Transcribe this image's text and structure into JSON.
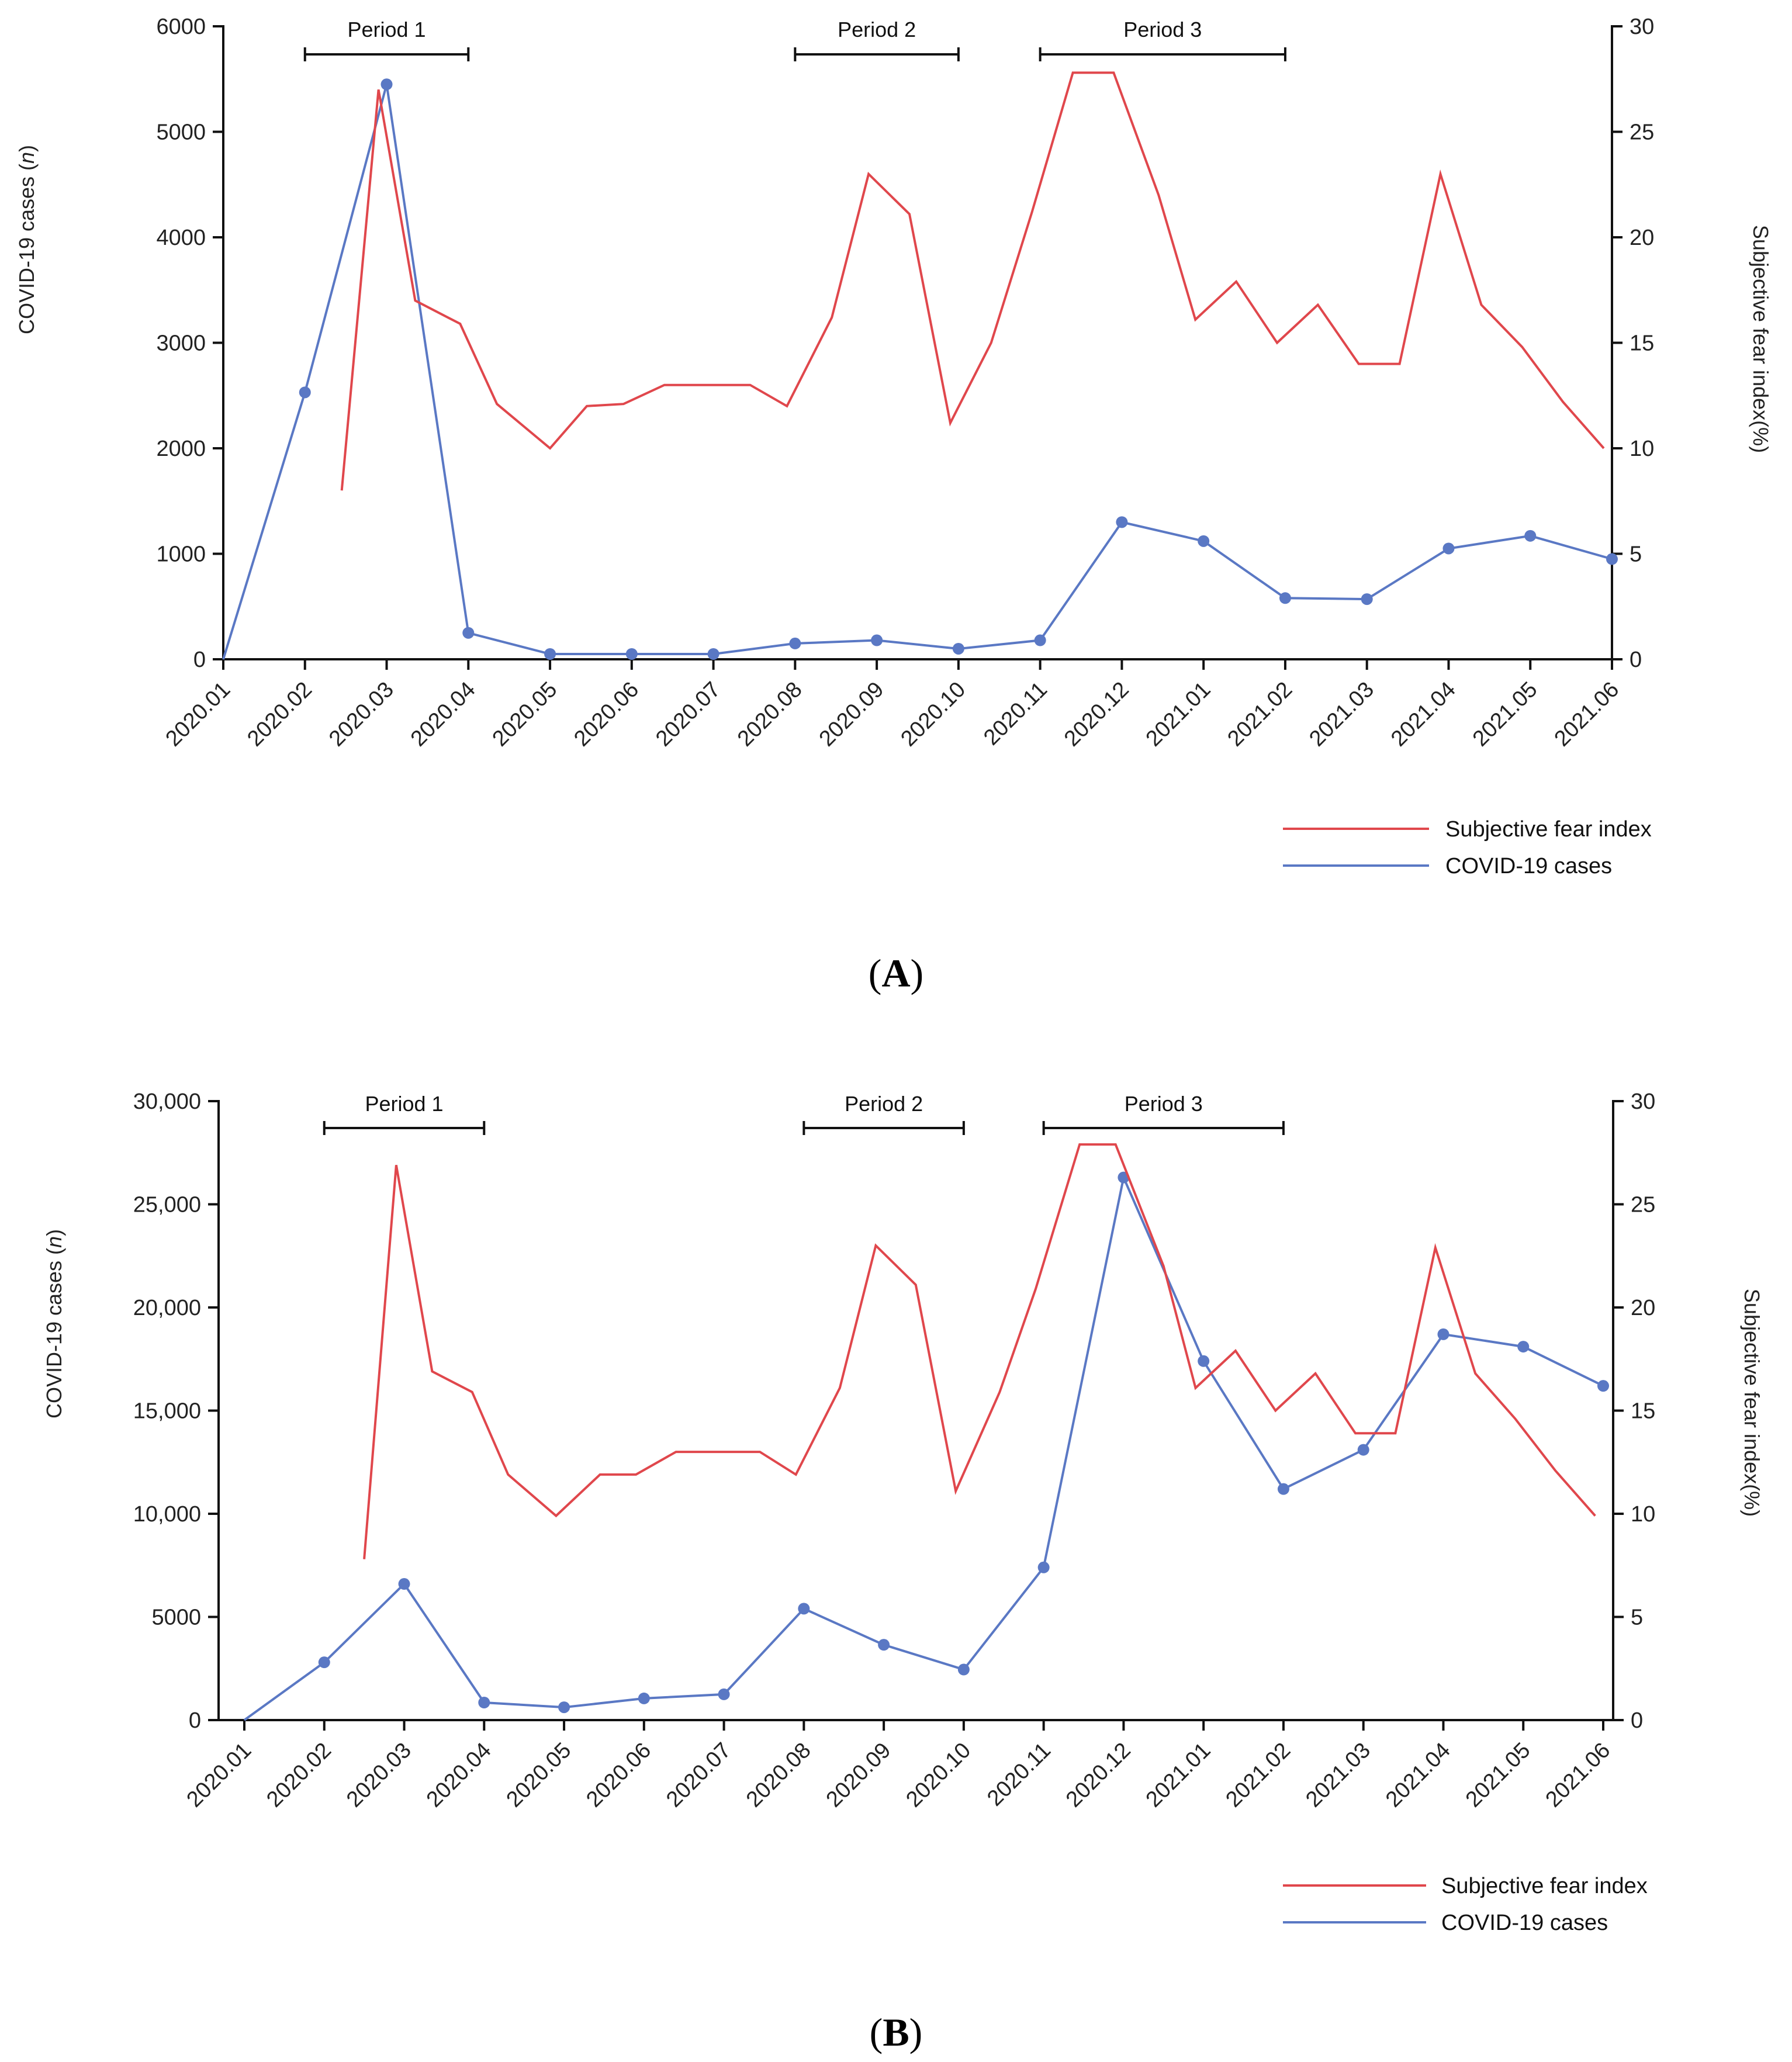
{
  "colors": {
    "fear": "#e0474c",
    "cases": "#5a78c4",
    "axis": "#111111"
  },
  "legend": {
    "fear_label": "Subjective fear index",
    "cases_label": "COVID-19 cases"
  },
  "chart_data": [
    {
      "type": "line",
      "panel_label": "A",
      "x": [
        "2020.01",
        "2020.02",
        "2020.03",
        "2020.04",
        "2020.05",
        "2020.06",
        "2020.07",
        "2020.08",
        "2020.09",
        "2020.10",
        "2020.11",
        "2020.12",
        "2021.01",
        "2021.02",
        "2021.03",
        "2021.04",
        "2021.05",
        "2021.06"
      ],
      "ylabel": "COVID-19 cases (n)",
      "ylabel_parts": [
        "COVID-19 cases (",
        "n",
        ")"
      ],
      "y2label": "Subjective fear index(%)",
      "ylim": [
        0,
        6000
      ],
      "yticks": [
        0,
        1000,
        2000,
        3000,
        4000,
        5000,
        6000
      ],
      "ytick_labels": [
        "0",
        "1000",
        "2000",
        "3000",
        "4000",
        "5000",
        "6000"
      ],
      "y2lim": [
        0,
        30
      ],
      "y2ticks": [
        0,
        5,
        10,
        15,
        20,
        25,
        30
      ],
      "y2tick_labels": [
        "0",
        "5",
        "10",
        "15",
        "20",
        "25",
        "30"
      ],
      "periods": [
        {
          "label": "Period 1",
          "start": 1,
          "end": 3
        },
        {
          "label": "Period 2",
          "start": 7,
          "end": 9
        },
        {
          "label": "Period 3",
          "start": 10,
          "end": 13
        }
      ],
      "series": [
        {
          "name": "COVID-19 cases",
          "axis": "left",
          "markers": true,
          "x": [
            0,
            1,
            2,
            3,
            4,
            5,
            6,
            7,
            8,
            9,
            10,
            11,
            12,
            13,
            14,
            15,
            16,
            17
          ],
          "values": [
            0,
            2530,
            5450,
            250,
            50,
            50,
            50,
            150,
            180,
            100,
            180,
            1300,
            1120,
            580,
            570,
            1050,
            1170,
            950
          ]
        },
        {
          "name": "Subjective fear index",
          "axis": "right",
          "markers": false,
          "x": [
            1.45,
            1.9,
            2.35,
            2.9,
            3.35,
            4.0,
            4.45,
            4.9,
            5.4,
            5.9,
            6.45,
            6.9,
            7.45,
            7.9,
            8.4,
            8.9,
            9.4,
            9.9,
            10.4,
            10.9,
            11.45,
            11.9,
            12.4,
            12.9,
            13.4,
            13.9,
            14.4,
            14.9,
            15.4,
            15.9,
            16.4,
            16.9
          ],
          "values": [
            8,
            27,
            17,
            15.9,
            12.1,
            10,
            12,
            12.1,
            13,
            13,
            13,
            12,
            16.2,
            23,
            21.1,
            11.2,
            15,
            21.2,
            27.8,
            27.8,
            22,
            16.1,
            17.9,
            15,
            16.8,
            14,
            14,
            23,
            16.8,
            14.8,
            12.2,
            10
          ]
        }
      ]
    },
    {
      "type": "line",
      "panel_label": "B",
      "x": [
        "2020.01",
        "2020.02",
        "2020.03",
        "2020.04",
        "2020.05",
        "2020.06",
        "2020.07",
        "2020.08",
        "2020.09",
        "2020.10",
        "2020.11",
        "2020.12",
        "2021.01",
        "2021.02",
        "2021.03",
        "2021.04",
        "2021.05",
        "2021.06"
      ],
      "ylabel": "COVID-19 cases (n)",
      "ylabel_parts": [
        "COVID-19 cases (",
        "n",
        ")"
      ],
      "y2label": "Subjective fear index(%)",
      "ylim": [
        0,
        30000
      ],
      "yticks": [
        0,
        5000,
        10000,
        15000,
        20000,
        25000,
        30000
      ],
      "ytick_labels": [
        "0",
        "5000",
        "10,000",
        "15,000",
        "20,000",
        "25,000",
        "30,000"
      ],
      "y2lim": [
        0,
        30
      ],
      "y2ticks": [
        0,
        5,
        10,
        15,
        20,
        25,
        30
      ],
      "y2tick_labels": [
        "0",
        "5",
        "10",
        "15",
        "20",
        "25",
        "30"
      ],
      "periods": [
        {
          "label": "Period 1",
          "start": 1,
          "end": 3
        },
        {
          "label": "Period 2",
          "start": 7,
          "end": 9
        },
        {
          "label": "Period 3",
          "start": 10,
          "end": 13
        }
      ],
      "series": [
        {
          "name": "COVID-19 cases",
          "axis": "left",
          "markers": true,
          "x": [
            0,
            1,
            2,
            3,
            4,
            5,
            6,
            7,
            8,
            9,
            10,
            11,
            12,
            13,
            14,
            15,
            16,
            17
          ],
          "values": [
            0,
            2800,
            6600,
            850,
            620,
            1050,
            1250,
            5400,
            3650,
            2450,
            7400,
            26300,
            17400,
            11200,
            13100,
            18700,
            18100,
            16200
          ]
        },
        {
          "name": "Subjective fear index",
          "axis": "right",
          "markers": false,
          "x": [
            1.5,
            1.9,
            2.35,
            2.85,
            3.3,
            3.9,
            4.45,
            4.9,
            5.4,
            5.9,
            6.45,
            6.9,
            7.45,
            7.9,
            8.4,
            8.9,
            9.45,
            9.9,
            10.45,
            10.9,
            11.5,
            11.9,
            12.4,
            12.9,
            13.4,
            13.9,
            14.4,
            14.9,
            15.4,
            15.9,
            16.4,
            16.9
          ],
          "values": [
            7.8,
            26.9,
            16.9,
            15.9,
            11.9,
            9.9,
            11.9,
            11.9,
            13,
            13,
            13,
            11.9,
            16.1,
            23,
            21.1,
            11.1,
            15.9,
            20.9,
            27.9,
            27.9,
            22,
            16.1,
            17.9,
            15,
            16.8,
            13.9,
            13.9,
            22.9,
            16.8,
            14.6,
            12.1,
            9.9
          ]
        }
      ]
    }
  ]
}
